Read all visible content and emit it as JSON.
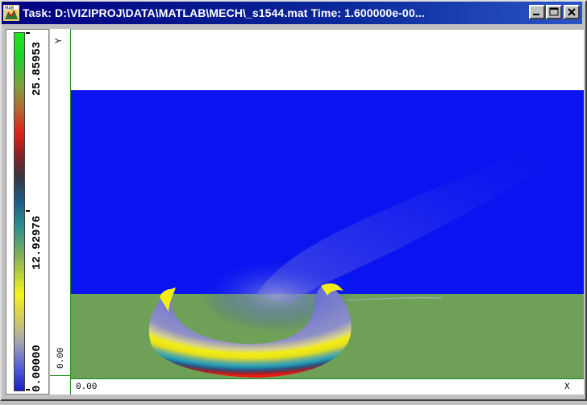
{
  "window": {
    "title": "Task: D:\\VIZIPROJ\\DATA\\MATLAB\\MECH\\_s1544.mat Time: 1.600000e-00...",
    "icon": "matlab-app-icon",
    "controls": {
      "minimize_icon": "minimize-icon",
      "maximize_icon": "maximize-icon",
      "close_icon": "close-icon"
    }
  },
  "colorbar": {
    "labels": {
      "top": "25.85953",
      "middle": "12.92976",
      "bottom": "0.00000"
    },
    "min": 0.0,
    "max": 25.85953
  },
  "axes": {
    "y_label": "Y",
    "x_label": "X",
    "y_origin": "0.00",
    "x_origin": "0.00"
  },
  "colors": {
    "fluid": "#0a14f0",
    "ground": "#6fa058",
    "background": "#ffffff",
    "axis_line": "#1a8a1a",
    "title_bar": "#000080"
  }
}
